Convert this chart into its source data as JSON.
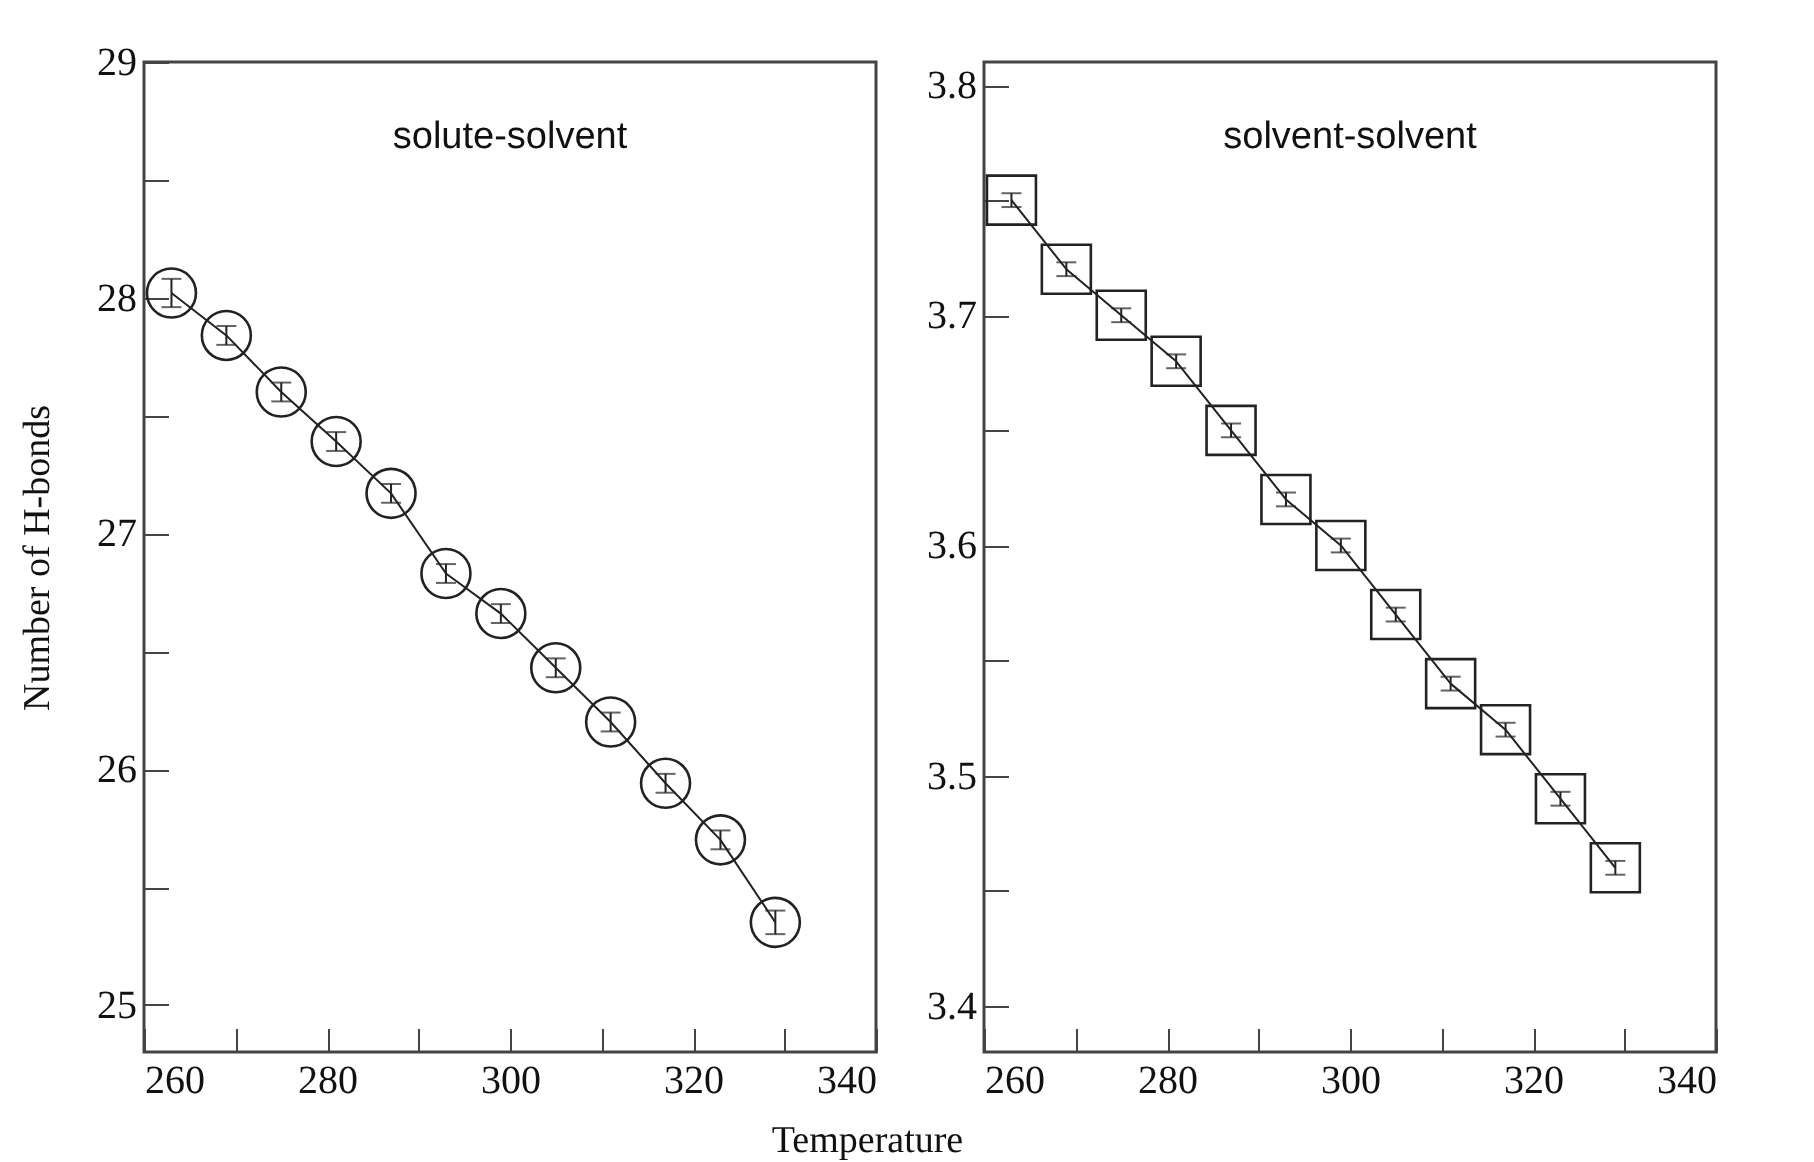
{
  "chart_data": [
    {
      "type": "line",
      "annotations": [
        "solute-solvent"
      ],
      "xlabel": "Temperature",
      "ylabel": "Number of H-bonds",
      "marker": "circle",
      "line_style": "solid",
      "grid": false,
      "x": [
        263,
        269,
        275,
        281,
        287,
        293,
        299,
        305,
        311,
        317,
        323,
        329
      ],
      "series": [
        {
          "color": "#222222",
          "values": [
            28.02,
            27.84,
            27.6,
            27.39,
            27.17,
            26.83,
            26.66,
            26.43,
            26.2,
            25.94,
            25.7,
            25.35
          ],
          "errors": [
            0.06,
            0.04,
            0.04,
            0.04,
            0.04,
            0.04,
            0.04,
            0.04,
            0.04,
            0.04,
            0.04,
            0.05
          ]
        }
      ],
      "xlim": [
        260,
        340
      ],
      "xticks": [
        260,
        {
          "value": 270,
          "label": null
        },
        280,
        {
          "value": 290,
          "label": null
        },
        300,
        {
          "value": 310,
          "label": null
        },
        320,
        {
          "value": 330,
          "label": null
        },
        340
      ],
      "ylim": [
        24.8,
        29
      ],
      "yticks": [
        25,
        {
          "value": 25.5,
          "label": null
        },
        26,
        {
          "value": 26.5,
          "label": null
        },
        27,
        {
          "value": 27.5,
          "label": null
        },
        28,
        {
          "value": 28.5,
          "label": null
        },
        29
      ]
    },
    {
      "type": "line",
      "annotations": [
        "solvent-solvent"
      ],
      "marker": "square",
      "line_style": "solid",
      "grid": false,
      "x": [
        263,
        269,
        275,
        281,
        287,
        293,
        299,
        305,
        311,
        317,
        323,
        329
      ],
      "series": [
        {
          "color": "#222222",
          "values": [
            3.75,
            3.72,
            3.7,
            3.68,
            3.65,
            3.62,
            3.6,
            3.57,
            3.54,
            3.52,
            3.49,
            3.46
          ],
          "errors": [
            0.003,
            0.003,
            0.003,
            0.003,
            0.003,
            0.003,
            0.003,
            0.003,
            0.003,
            0.003,
            0.003,
            0.003
          ]
        }
      ],
      "xlim": [
        260,
        340
      ],
      "xticks": [
        260,
        {
          "value": 270,
          "label": null
        },
        280,
        {
          "value": 290,
          "label": null
        },
        300,
        {
          "value": 310,
          "label": null
        },
        320,
        {
          "value": 330,
          "label": null
        },
        340
      ],
      "ylim": [
        3.38,
        3.81
      ],
      "yticks": [
        3.4,
        {
          "value": 3.45,
          "label": null
        },
        3.5,
        {
          "value": 3.55,
          "label": null
        },
        3.6,
        {
          "value": 3.65,
          "label": null
        },
        3.7,
        {
          "value": 3.75,
          "label": null
        },
        3.8
      ]
    }
  ]
}
